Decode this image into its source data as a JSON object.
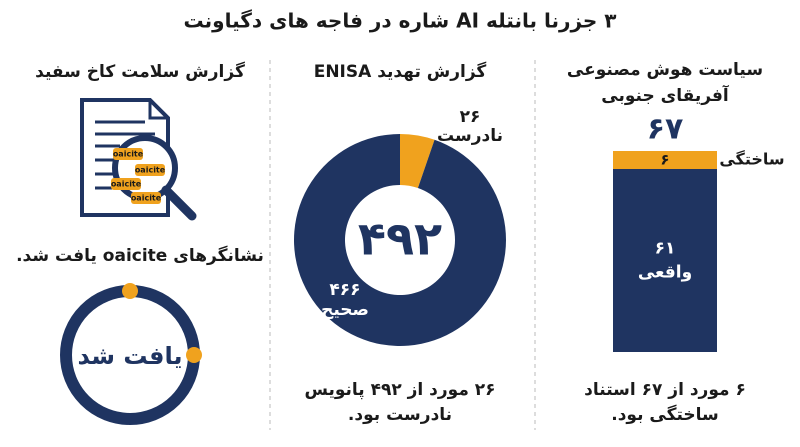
{
  "title": "۳ جزرنا بانتله AI شاره در فاجه های دگیاونت",
  "report": {
    "title": "گزارش سلامت کاخ سفید",
    "icon_labels": [
      "oaicite",
      "oaicite",
      "oaicite",
      "oaicite"
    ],
    "caption": "نشانگرهای oaicite یافت شد.",
    "badge": "یافت شد"
  },
  "chart_data": [
    {
      "type": "pie",
      "title": "گزارش تهدید ENISA",
      "categories": [
        "نادرست",
        "صحیح"
      ],
      "values": [
        26,
        466
      ],
      "value_labels": [
        "۲۶",
        "۴۶۶"
      ],
      "colors": [
        "#f0a21e",
        "#1f3461"
      ],
      "center_label": "۴۹۲",
      "caption": [
        "۲۶ مورد از ۴۹۲ پانویس",
        "نادرست بود."
      ]
    },
    {
      "type": "bar",
      "stacked": true,
      "title": [
        "سیاست هوش مصنوعی",
        "آفریقای جنوبی"
      ],
      "total_label": "۶۷",
      "series": [
        {
          "name": "واقعی",
          "color": "#1f3461",
          "values": [
            61
          ],
          "value_labels": [
            "۶۱"
          ]
        },
        {
          "name": "ساختگی",
          "color": "#f0a21e",
          "values": [
            6
          ],
          "value_labels": [
            "۶"
          ]
        }
      ],
      "caption": [
        "۶ مورد از ۶۷ استناد",
        "ساختگی بود."
      ]
    }
  ]
}
